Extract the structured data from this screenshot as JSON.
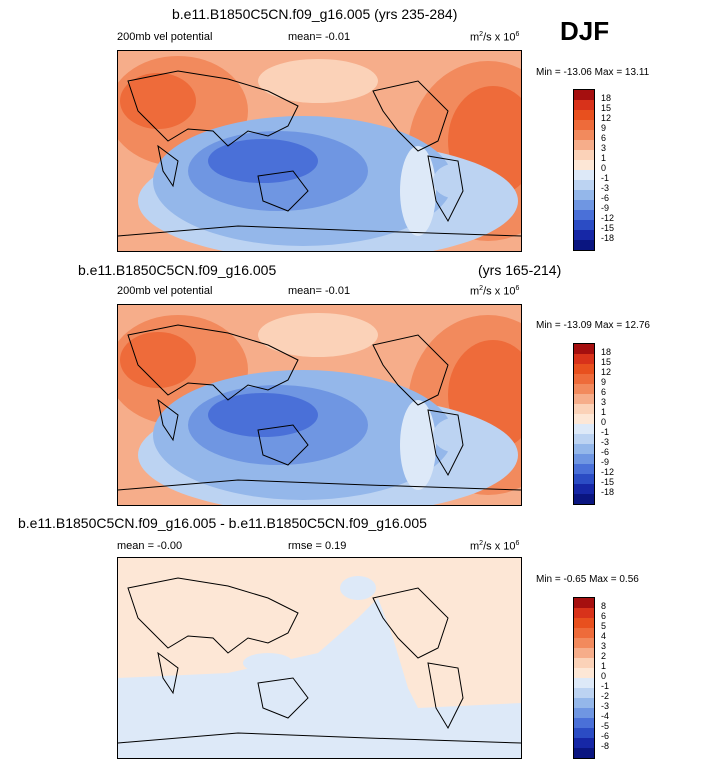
{
  "season": "DJF",
  "units_base": "m",
  "units_mid": "/s x 10",
  "units_sup2": "2",
  "units_sup6": "6",
  "chart_data": [
    {
      "type": "heatmap",
      "title": "b.e11.B1850C5CN.f09_g16.005 (yrs 235-284)",
      "left_label": "200mb vel potential",
      "center_label": "mean=  -0.01",
      "minmax": "Min = -13.06 Max =  13.11",
      "colorbar_levels": [
        "18",
        "15",
        "12",
        "9",
        "6",
        "3",
        "1",
        "0",
        "-1",
        "-3",
        "-6",
        "-9",
        "-12",
        "-15",
        "-18"
      ],
      "colorbar_colors": [
        "#a50f0f",
        "#d8321a",
        "#e8501e",
        "#ee6b3a",
        "#f28a5d",
        "#f6ad8a",
        "#fbd2b8",
        "#fde7d6",
        "#dde9f8",
        "#bcd3f2",
        "#94b7ea",
        "#6f96e2",
        "#4a70d8",
        "#2b4cc4",
        "#1627a6",
        "#0a1580"
      ],
      "min": -13.06,
      "max": 13.11,
      "mean": -0.01
    },
    {
      "type": "heatmap",
      "title_left": "b.e11.B1850C5CN.f09_g16.005",
      "title_right": "(yrs 165-214)",
      "left_label": "200mb vel potential",
      "center_label": "mean=  -0.01",
      "minmax": "Min = -13.09 Max =  12.76",
      "colorbar_levels": [
        "18",
        "15",
        "12",
        "9",
        "6",
        "3",
        "1",
        "0",
        "-1",
        "-3",
        "-6",
        "-9",
        "-12",
        "-15",
        "-18"
      ],
      "colorbar_colors": [
        "#a50f0f",
        "#d8321a",
        "#e8501e",
        "#ee6b3a",
        "#f28a5d",
        "#f6ad8a",
        "#fbd2b8",
        "#fde7d6",
        "#dde9f8",
        "#bcd3f2",
        "#94b7ea",
        "#6f96e2",
        "#4a70d8",
        "#2b4cc4",
        "#1627a6",
        "#0a1580"
      ],
      "min": -13.09,
      "max": 12.76,
      "mean": -0.01
    },
    {
      "type": "heatmap",
      "title": "b.e11.B1850C5CN.f09_g16.005 - b.e11.B1850C5CN.f09_g16.005",
      "left_label": "mean = -0.00",
      "center_label": "rmse =  0.19",
      "minmax": "Min = -0.65 Max =  0.56",
      "colorbar_levels": [
        "8",
        "6",
        "5",
        "4",
        "3",
        "2",
        "1",
        "0",
        "-1",
        "-2",
        "-3",
        "-4",
        "-5",
        "-6",
        "-8"
      ],
      "colorbar_colors": [
        "#a50f0f",
        "#d8321a",
        "#e8501e",
        "#ee6b3a",
        "#f28a5d",
        "#f6ad8a",
        "#fbd2b8",
        "#fde7d6",
        "#dde9f8",
        "#bcd3f2",
        "#94b7ea",
        "#6f96e2",
        "#4a70d8",
        "#2b4cc4",
        "#1627a6",
        "#0a1580"
      ],
      "min": -0.65,
      "max": 0.56,
      "mean": -0.0,
      "rmse": 0.19
    }
  ]
}
